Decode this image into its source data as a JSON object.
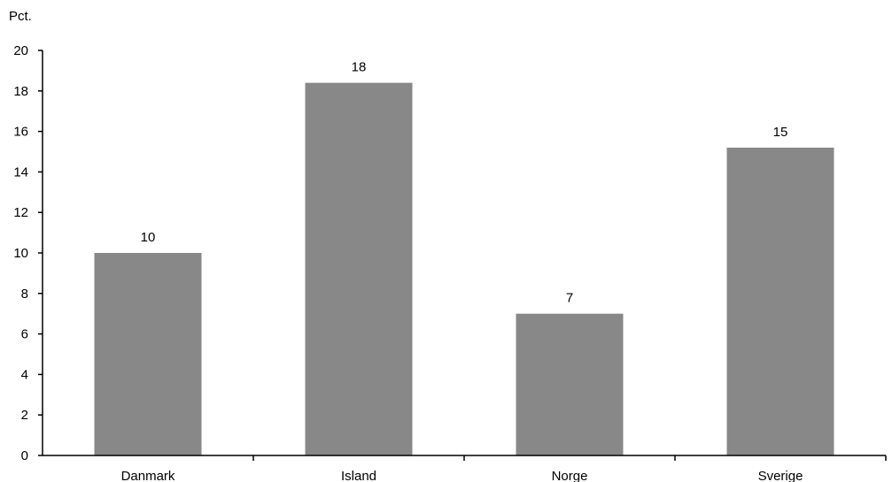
{
  "chart_data": {
    "type": "bar",
    "ylabel": "Pct.",
    "xlabel": "",
    "categories": [
      "Danmark",
      "Island",
      "Norge",
      "Sverige"
    ],
    "values": [
      10,
      18.4,
      7,
      15.2
    ],
    "value_labels": [
      "10",
      "18",
      "7",
      "15"
    ],
    "ylim": [
      0,
      20
    ],
    "yticks": [
      0,
      2,
      4,
      6,
      8,
      10,
      12,
      14,
      16,
      18,
      20
    ],
    "ytick_labels": [
      "0",
      "2",
      "4",
      "6",
      "8",
      "10",
      "12",
      "14",
      "16",
      "18",
      "20"
    ],
    "grid": false,
    "legend": "none",
    "bar_color": "#888888"
  }
}
